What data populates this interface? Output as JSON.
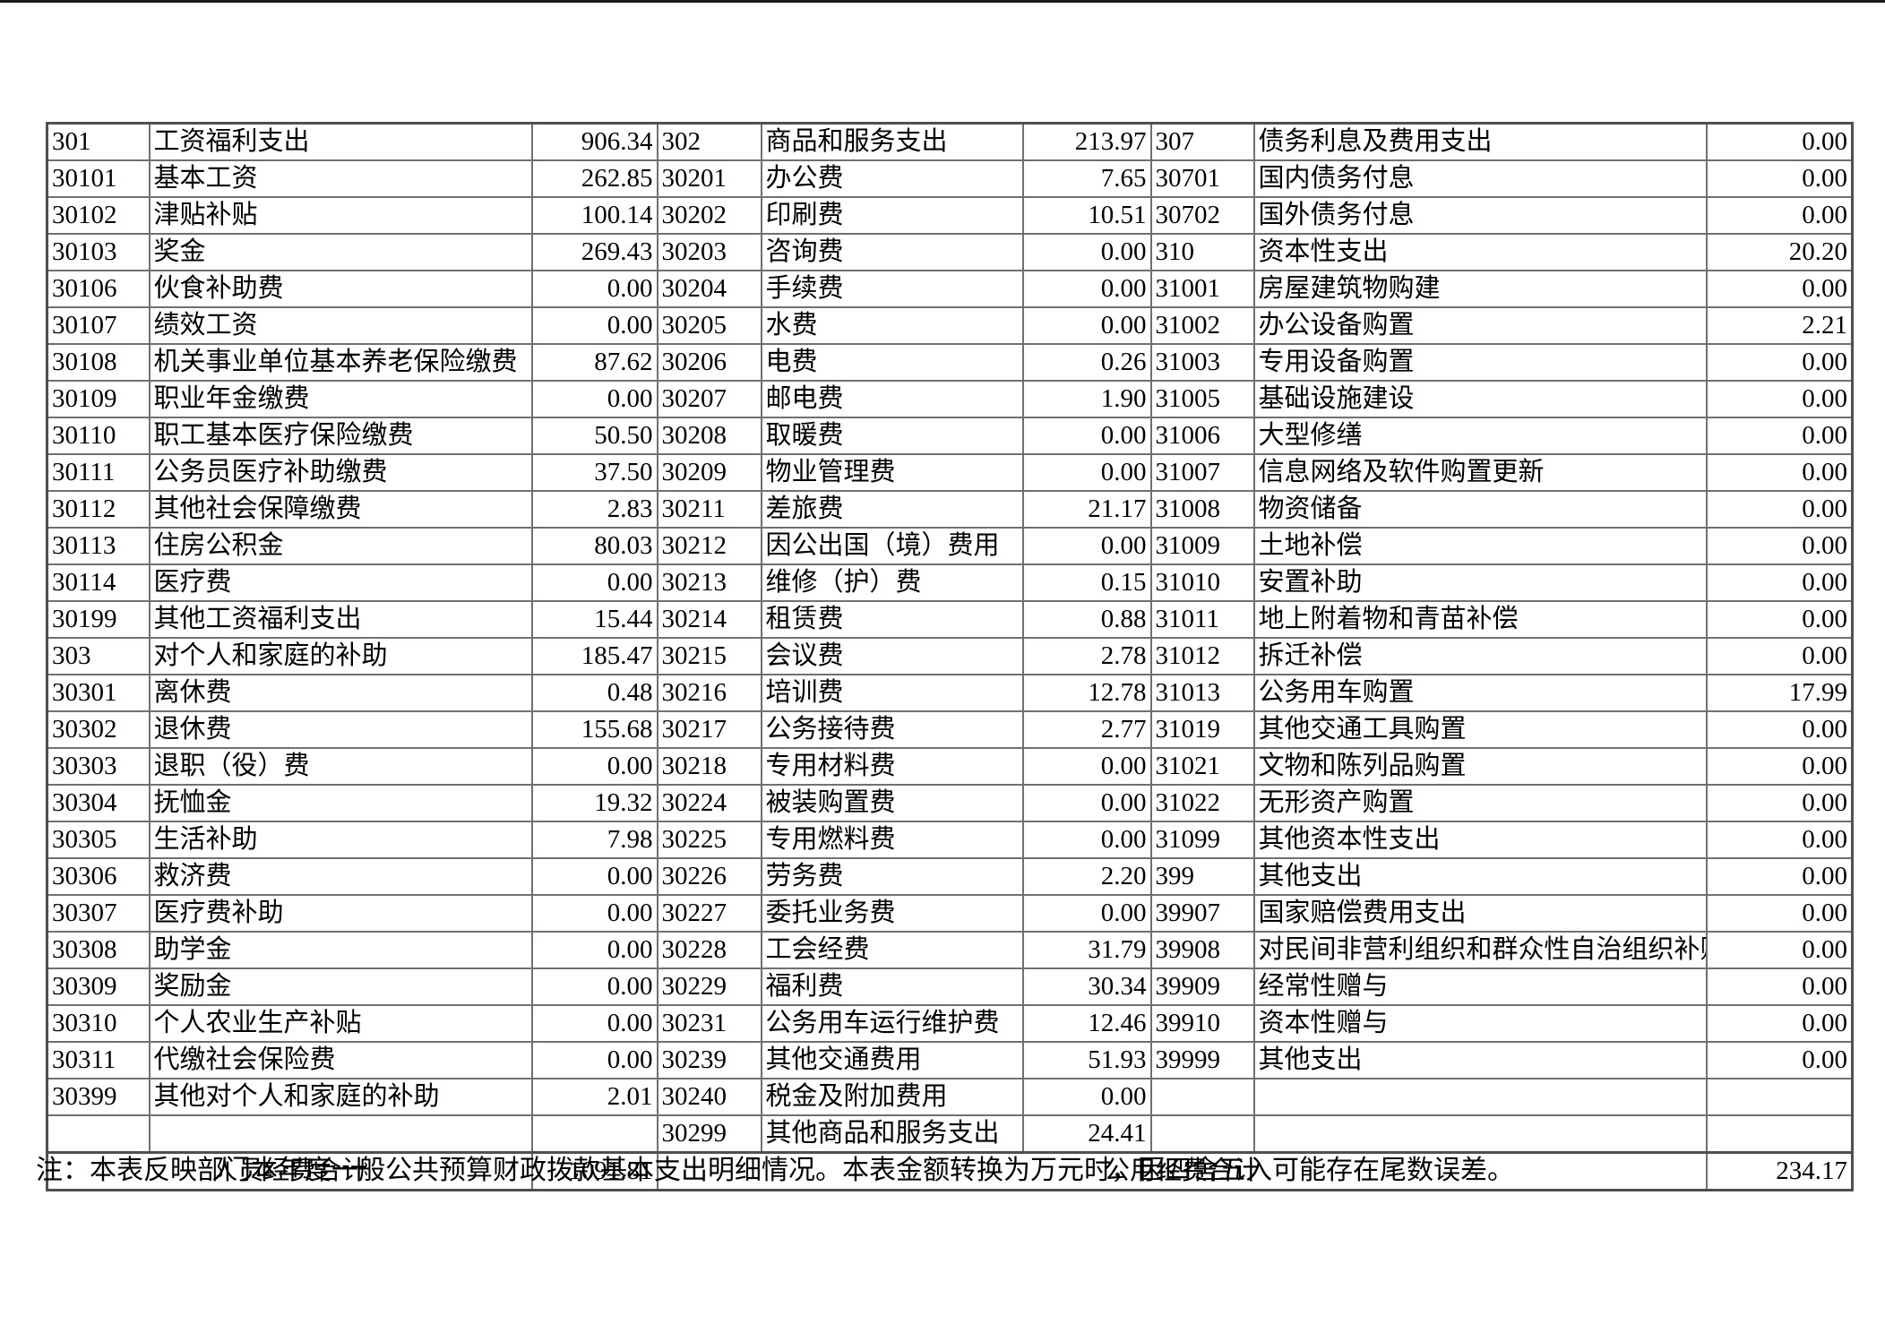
{
  "table": {
    "rows": [
      [
        "301",
        "工资福利支出",
        "906.34",
        "302",
        "商品和服务支出",
        "213.97",
        "307",
        "债务利息及费用支出",
        "0.00"
      ],
      [
        "30101",
        "基本工资",
        "262.85",
        "30201",
        "办公费",
        "7.65",
        "30701",
        "国内债务付息",
        "0.00"
      ],
      [
        "30102",
        "津贴补贴",
        "100.14",
        "30202",
        "印刷费",
        "10.51",
        "30702",
        "国外债务付息",
        "0.00"
      ],
      [
        "30103",
        "奖金",
        "269.43",
        "30203",
        "咨询费",
        "0.00",
        "310",
        "资本性支出",
        "20.20"
      ],
      [
        "30106",
        "伙食补助费",
        "0.00",
        "30204",
        "手续费",
        "0.00",
        "31001",
        "房屋建筑物购建",
        "0.00"
      ],
      [
        "30107",
        "绩效工资",
        "0.00",
        "30205",
        "水费",
        "0.00",
        "31002",
        "办公设备购置",
        "2.21"
      ],
      [
        "30108",
        "机关事业单位基本养老保险缴费",
        "87.62",
        "30206",
        "电费",
        "0.26",
        "31003",
        "专用设备购置",
        "0.00"
      ],
      [
        "30109",
        "职业年金缴费",
        "0.00",
        "30207",
        "邮电费",
        "1.90",
        "31005",
        "基础设施建设",
        "0.00"
      ],
      [
        "30110",
        "职工基本医疗保险缴费",
        "50.50",
        "30208",
        "取暖费",
        "0.00",
        "31006",
        "大型修缮",
        "0.00"
      ],
      [
        "30111",
        "公务员医疗补助缴费",
        "37.50",
        "30209",
        "物业管理费",
        "0.00",
        "31007",
        "信息网络及软件购置更新",
        "0.00"
      ],
      [
        "30112",
        "其他社会保障缴费",
        "2.83",
        "30211",
        "差旅费",
        "21.17",
        "31008",
        "物资储备",
        "0.00"
      ],
      [
        "30113",
        "住房公积金",
        "80.03",
        "30212",
        "因公出国（境）费用",
        "0.00",
        "31009",
        "土地补偿",
        "0.00"
      ],
      [
        "30114",
        "医疗费",
        "0.00",
        "30213",
        "维修（护）费",
        "0.15",
        "31010",
        "安置补助",
        "0.00"
      ],
      [
        "30199",
        "其他工资福利支出",
        "15.44",
        "30214",
        "租赁费",
        "0.88",
        "31011",
        "地上附着物和青苗补偿",
        "0.00"
      ],
      [
        "303",
        "对个人和家庭的补助",
        "185.47",
        "30215",
        "会议费",
        "2.78",
        "31012",
        "拆迁补偿",
        "0.00"
      ],
      [
        "30301",
        "离休费",
        "0.48",
        "30216",
        "培训费",
        "12.78",
        "31013",
        "公务用车购置",
        "17.99"
      ],
      [
        "30302",
        "退休费",
        "155.68",
        "30217",
        "公务接待费",
        "2.77",
        "31019",
        "其他交通工具购置",
        "0.00"
      ],
      [
        "30303",
        "退职（役）费",
        "0.00",
        "30218",
        "专用材料费",
        "0.00",
        "31021",
        "文物和陈列品购置",
        "0.00"
      ],
      [
        "30304",
        "抚恤金",
        "19.32",
        "30224",
        "被装购置费",
        "0.00",
        "31022",
        "无形资产购置",
        "0.00"
      ],
      [
        "30305",
        "生活补助",
        "7.98",
        "30225",
        "专用燃料费",
        "0.00",
        "31099",
        "其他资本性支出",
        "0.00"
      ],
      [
        "30306",
        "救济费",
        "0.00",
        "30226",
        "劳务费",
        "2.20",
        "399",
        "其他支出",
        "0.00"
      ],
      [
        "30307",
        "医疗费补助",
        "0.00",
        "30227",
        "委托业务费",
        "0.00",
        "39907",
        "国家赔偿费用支出",
        "0.00"
      ],
      [
        "30308",
        "助学金",
        "0.00",
        "30228",
        "工会经费",
        "31.79",
        "39908",
        "对民间非营利组织和群众性自治组织补贴",
        "0.00"
      ],
      [
        "30309",
        "奖励金",
        "0.00",
        "30229",
        "福利费",
        "30.34",
        "39909",
        "经常性赠与",
        "0.00"
      ],
      [
        "30310",
        "个人农业生产补贴",
        "0.00",
        "30231",
        "公务用车运行维护费",
        "12.46",
        "39910",
        "资本性赠与",
        "0.00"
      ],
      [
        "30311",
        "代缴社会保险费",
        "0.00",
        "30239",
        "其他交通费用",
        "51.93",
        "39999",
        "其他支出",
        "0.00"
      ],
      [
        "30399",
        "其他对个人和家庭的补助",
        "2.01",
        "30240",
        "税金及附加费用",
        "0.00",
        "",
        "",
        ""
      ],
      [
        "",
        "",
        "",
        "30299",
        "其他商品和服务支出",
        "24.41",
        "",
        "",
        ""
      ]
    ],
    "totals": {
      "personnel_label": "人员经费合计",
      "personnel_value": "1091.81",
      "public_label": "公用经费合计",
      "public_value": "234.17"
    }
  },
  "footnote": "注：本表反映部门本年度一般公共预算财政拨款基本支出明细情况。本表金额转换为万元时，因四舍五入可能存在尾数误差。"
}
